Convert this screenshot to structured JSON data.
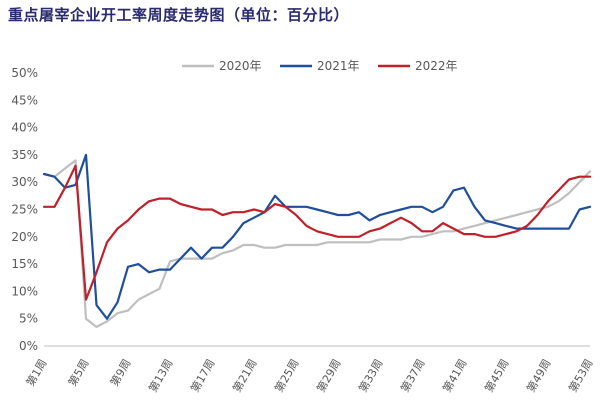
{
  "chart_data": {
    "type": "line",
    "title": "重点屠宰企业开工率周度走势图（单位：百分比）",
    "x": [
      1,
      2,
      3,
      4,
      5,
      6,
      7,
      8,
      9,
      10,
      11,
      12,
      13,
      14,
      15,
      16,
      17,
      18,
      19,
      20,
      21,
      22,
      23,
      24,
      25,
      26,
      27,
      28,
      29,
      30,
      31,
      32,
      33,
      34,
      35,
      36,
      37,
      38,
      39,
      40,
      41,
      42,
      43,
      44,
      45,
      46,
      47,
      48,
      49,
      50,
      51,
      52,
      53
    ],
    "x_tick_labels": [
      "第1周",
      "第5周",
      "第9周",
      "第13周",
      "第17周",
      "第21周",
      "第25周",
      "第29周",
      "第33周",
      "第37周",
      "第41周",
      "第45周",
      "第49周",
      "第53周"
    ],
    "x_tick_weeks": [
      1,
      5,
      9,
      13,
      17,
      21,
      25,
      29,
      33,
      37,
      41,
      45,
      49,
      53
    ],
    "ylim": [
      0,
      50
    ],
    "y_ticks": [
      0,
      5,
      10,
      15,
      20,
      25,
      30,
      35,
      40,
      45,
      50
    ],
    "y_tick_labels": [
      "0%",
      "5%",
      "10%",
      "15%",
      "20%",
      "25%",
      "30%",
      "35%",
      "40%",
      "45%",
      "50%"
    ],
    "legend_position": "top",
    "series": [
      {
        "name": "2020年",
        "color": "#bfbfbf",
        "values": [
          31.5,
          31,
          32.5,
          34,
          5,
          3.5,
          4.5,
          6,
          6.5,
          8.5,
          9.5,
          10.5,
          15.5,
          16,
          16,
          16,
          16,
          17,
          17.5,
          18.5,
          18.5,
          18,
          18,
          18.5,
          18.5,
          18.5,
          18.5,
          19,
          19,
          19,
          19,
          19,
          19.5,
          19.5,
          19.5,
          20,
          20,
          20.5,
          21,
          21,
          21.5,
          22,
          22.5,
          23,
          23.5,
          24,
          24.5,
          25,
          25.5,
          26.5,
          28,
          30,
          32
        ]
      },
      {
        "name": "2021年",
        "color": "#1f4e9c",
        "values": [
          31.5,
          31,
          29,
          29.5,
          35,
          7.5,
          5,
          8,
          14.5,
          15,
          13.5,
          14,
          14,
          16,
          18,
          16,
          18,
          18,
          20,
          22.5,
          23.5,
          24.5,
          27.5,
          25.5,
          25.5,
          25.5,
          25,
          24.5,
          24,
          24,
          24.5,
          23,
          24,
          24.5,
          25,
          25.5,
          25.5,
          24.5,
          25.5,
          28.5,
          29,
          25.5,
          23,
          22.5,
          22,
          21.5,
          21.5,
          21.5,
          21.5,
          21.5,
          21.5,
          25,
          25.5
        ]
      },
      {
        "name": "2022年",
        "color": "#c0202a",
        "values": [
          25.5,
          25.5,
          29,
          33,
          8.5,
          13.5,
          19,
          21.5,
          23,
          25,
          26.5,
          27,
          27,
          26,
          25.5,
          25,
          25,
          24,
          24.5,
          24.5,
          25,
          24.5,
          26,
          25.5,
          24,
          22,
          21,
          20.5,
          20,
          20,
          20,
          21,
          21.5,
          22.5,
          23.5,
          22.5,
          21,
          21,
          22.5,
          21.5,
          20.5,
          20.5,
          20,
          20,
          20.5,
          21,
          22,
          24,
          26.5,
          28.5,
          30.5,
          31,
          31
        ]
      }
    ]
  }
}
